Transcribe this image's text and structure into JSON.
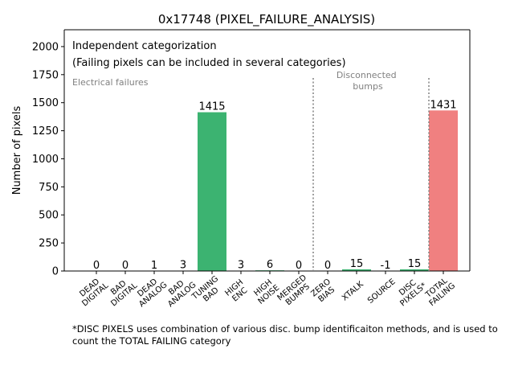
{
  "chart_data": {
    "type": "bar",
    "title": "0x17748 (PIXEL_FAILURE_ANALYSIS)",
    "ylabel": "Number of pixels",
    "xlabel": "",
    "ylim": [
      0,
      2150
    ],
    "yticks": [
      0,
      250,
      500,
      750,
      1000,
      1250,
      1500,
      1750,
      2000
    ],
    "categories": [
      [
        "DEAD",
        "DIGITAL"
      ],
      [
        "BAD",
        "DIGITAL"
      ],
      [
        "DEAD",
        "ANALOG"
      ],
      [
        "BAD",
        "ANALOG"
      ],
      [
        "TUNING",
        "BAD"
      ],
      [
        "HIGH",
        "ENC"
      ],
      [
        "HIGH",
        "NOISE"
      ],
      [
        "MERGED",
        "BUMPS"
      ],
      [
        "ZERO",
        "BIAS"
      ],
      [
        "XTALK"
      ],
      [
        "SOURCE"
      ],
      [
        "DISC",
        "PIXELS*"
      ],
      [
        "TOTAL",
        "FAILING"
      ]
    ],
    "values": [
      0,
      0,
      1,
      3,
      1415,
      3,
      6,
      0,
      0,
      15,
      -1,
      15,
      1431
    ],
    "value_labels": [
      "0",
      "0",
      "1",
      "3",
      "1415",
      "3",
      "6",
      "0",
      "0",
      "15",
      "-1",
      "15",
      "1431"
    ],
    "bar_colors": [
      "#3cb371",
      "#3cb371",
      "#3cb371",
      "#3cb371",
      "#3cb371",
      "#3cb371",
      "#3cb371",
      "#3cb371",
      "#3cb371",
      "#3cb371",
      "#3cb371",
      "#3cb371",
      "#f08080"
    ],
    "annotations": {
      "line1": "Independent categorization",
      "line2": "(Failing pixels can be included in several categories)",
      "section_electrical": "Electrical failures",
      "section_disconnected": [
        "Disconnected",
        "bumps"
      ]
    },
    "separator_color": "#808080",
    "grid": false,
    "footnote": "*DISC PIXELS uses combination of various disc. bump identificaiton methods, and is used to count the TOTAL FAILING category"
  }
}
